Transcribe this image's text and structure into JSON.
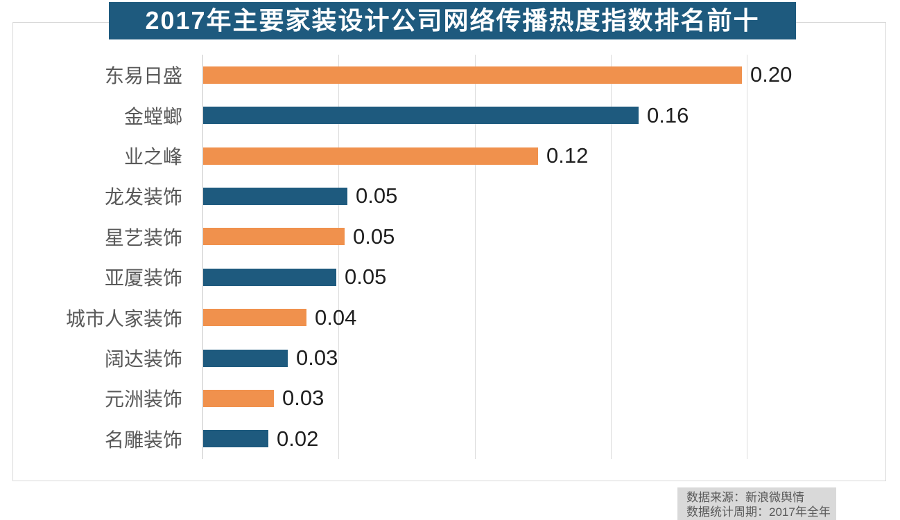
{
  "title": "2017年主要家装设计公司网络传播热度指数排名前十",
  "source_note": {
    "line1": "数据来源：新浪微舆情",
    "line2": "数据统计周期：2017年全年"
  },
  "colors": {
    "bar_orange": "#F0914D",
    "bar_teal": "#1E5A7E",
    "title_background": "#1E5A7E",
    "title_text": "#FFFFFF",
    "gridline": "#DCDCDC",
    "axis_line": "#C6C6C6",
    "chart_border": "#D9D9D9",
    "category_text": "#595959",
    "value_text": "#1F1F1F",
    "note_background": "#D9D9D9"
  },
  "chart_data": {
    "type": "bar",
    "orientation": "horizontal",
    "title": "2017年主要家装设计公司网络传播热度指数排名前十",
    "categories": [
      "东易日盛",
      "金螳螂",
      "业之峰",
      "龙发装饰",
      "星艺装饰",
      "亚厦装饰",
      "城市人家装饰",
      "阔达装饰",
      "元洲装饰",
      "名雕装饰"
    ],
    "values": [
      0.2,
      0.16,
      0.12,
      0.05,
      0.05,
      0.05,
      0.04,
      0.03,
      0.03,
      0.02
    ],
    "value_labels": [
      "0.20",
      "0.16",
      "0.12",
      "0.05",
      "0.05",
      "0.05",
      "0.04",
      "0.03",
      "0.03",
      "0.02"
    ],
    "values_precise": [
      0.198,
      0.16,
      0.123,
      0.053,
      0.052,
      0.049,
      0.038,
      0.031,
      0.026,
      0.024
    ],
    "bar_colors_alternate": [
      "#F0914D",
      "#1E5A7E"
    ],
    "xlabel": "",
    "ylabel": "",
    "xlim": [
      0,
      0.25
    ],
    "gridline_interval": 0.05,
    "grid": true,
    "legend": false,
    "data_labels": true
  }
}
